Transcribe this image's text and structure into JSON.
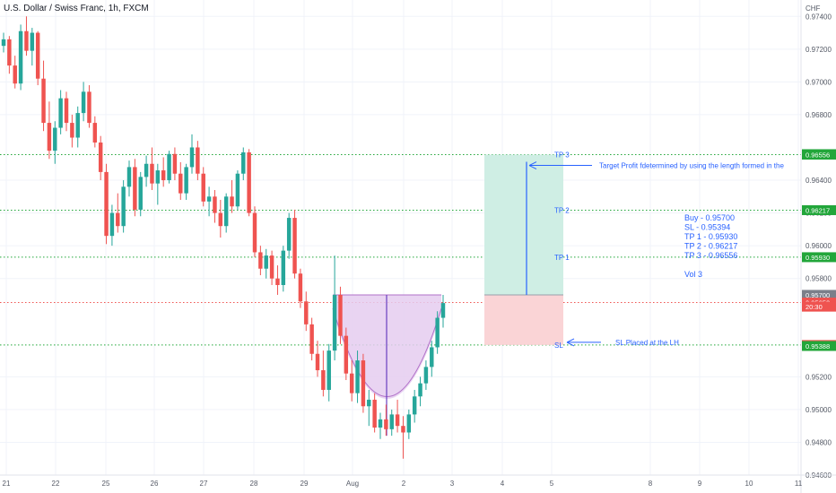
{
  "header": {
    "title": "U.S. Dollar / Swiss Franc, 1h, FXCM"
  },
  "chart_data": {
    "type": "candlestick",
    "symbol": "U.S. Dollar / Swiss Franc",
    "interval": "1h",
    "source": "FXCM",
    "y_unit": "CHF",
    "ylim": [
      0.946,
      0.975
    ],
    "y_ticks": [
      "0.97400",
      "0.97200",
      "0.97000",
      "0.96800",
      "0.96400",
      "0.96200",
      "0.96000",
      "0.95800",
      "0.95200",
      "0.95000",
      "0.94800",
      "0.94600"
    ],
    "x_ticks": [
      "21",
      "22",
      "25",
      "26",
      "27",
      "28",
      "29",
      "Aug",
      "2",
      "3",
      "4",
      "5",
      "8",
      "9",
      "10",
      "11",
      "12"
    ],
    "horizontal_levels": [
      {
        "label": "0.96556",
        "value": 0.96556,
        "color": "#22a63a",
        "style": "dotted"
      },
      {
        "label": "0.96217",
        "value": 0.96217,
        "color": "#22a63a",
        "style": "dotted"
      },
      {
        "label": "0.95930",
        "value": 0.9593,
        "color": "#22a63a",
        "style": "dotted"
      },
      {
        "label": "0.95394",
        "value": 0.95394,
        "color": "#22a63a",
        "style": "dotted"
      },
      {
        "label": "0.95653",
        "value": 0.95653,
        "color": "#ef5350",
        "style": "dotted"
      }
    ],
    "price_badges": [
      {
        "text": "0.96559",
        "value": 0.96559,
        "bg": "#22a63a"
      },
      {
        "text": "0.96556",
        "value": 0.96556,
        "bg": "#22a63a"
      },
      {
        "text": "0.96217",
        "value": 0.96217,
        "bg": "#22a63a"
      },
      {
        "text": "0.95930",
        "value": 0.9593,
        "bg": "#22a63a"
      },
      {
        "text": "0.95700",
        "value": 0.957,
        "bg": "#7b7f8a"
      },
      {
        "text": "0.95653",
        "value": 0.95653,
        "bg": "#ef5350"
      },
      {
        "text": "20:30",
        "value": 0.95628,
        "bg": "#ef5350"
      },
      {
        "text": "0.95394",
        "value": 0.95394,
        "bg": "#ef5350"
      },
      {
        "text": "0.95388",
        "value": 0.95388,
        "bg": "#22a63a"
      }
    ],
    "position": {
      "entry": 0.957,
      "stop": 0.95394,
      "target": 0.96556,
      "profit_zone_color": "#cfeee4",
      "loss_zone_color": "#fad4d6"
    },
    "level_labels": [
      {
        "text": "TP 3",
        "value": 0.96556
      },
      {
        "text": "TP 2",
        "value": 0.96217
      },
      {
        "text": "TP 1",
        "value": 0.9593
      },
      {
        "text": "SL",
        "value": 0.95394
      }
    ],
    "annotations": {
      "target_note": "Target Profit fdetermined by using the length formed in the",
      "sl_note": "SL Placed at the LH",
      "trade_plan": [
        "Buy - 0.95700",
        "SL - 0.95394",
        "TP 1 - 0.95930",
        "TP 2 - 0.96217",
        "TP 3 - 0.96556",
        "",
        "Vol 3"
      ]
    },
    "cup_pattern": {
      "rim": 0.957,
      "bottom": 0.9484,
      "color": "#b070c8"
    },
    "candles": [
      [
        0.9722,
        0.973,
        0.9718,
        0.9726
      ],
      [
        0.9726,
        0.9728,
        0.9705,
        0.971
      ],
      [
        0.971,
        0.9716,
        0.9696,
        0.9699
      ],
      [
        0.9699,
        0.9735,
        0.9695,
        0.9731
      ],
      [
        0.9731,
        0.974,
        0.9716,
        0.9719
      ],
      [
        0.9719,
        0.9733,
        0.971,
        0.973
      ],
      [
        0.973,
        0.9731,
        0.9698,
        0.9702
      ],
      [
        0.9702,
        0.9713,
        0.967,
        0.9675
      ],
      [
        0.9675,
        0.9688,
        0.9653,
        0.9658
      ],
      [
        0.9658,
        0.9676,
        0.965,
        0.9672
      ],
      [
        0.9672,
        0.9695,
        0.9668,
        0.969
      ],
      [
        0.969,
        0.9694,
        0.967,
        0.9675
      ],
      [
        0.9675,
        0.968,
        0.966,
        0.9666
      ],
      [
        0.9666,
        0.9685,
        0.966,
        0.9681
      ],
      [
        0.9681,
        0.97,
        0.9676,
        0.9694
      ],
      [
        0.9694,
        0.9698,
        0.9672,
        0.9675
      ],
      [
        0.9675,
        0.9679,
        0.966,
        0.9663
      ],
      [
        0.9663,
        0.9667,
        0.964,
        0.9645
      ],
      [
        0.9645,
        0.965,
        0.9601,
        0.9606
      ],
      [
        0.9606,
        0.9625,
        0.96,
        0.962
      ],
      [
        0.962,
        0.9632,
        0.9608,
        0.9612
      ],
      [
        0.9612,
        0.964,
        0.9608,
        0.9636
      ],
      [
        0.9636,
        0.9652,
        0.963,
        0.9648
      ],
      [
        0.9648,
        0.9653,
        0.9618,
        0.9622
      ],
      [
        0.9622,
        0.9645,
        0.9618,
        0.9642
      ],
      [
        0.9642,
        0.9655,
        0.9636,
        0.965
      ],
      [
        0.965,
        0.966,
        0.9634,
        0.9638
      ],
      [
        0.9638,
        0.965,
        0.9625,
        0.9646
      ],
      [
        0.9646,
        0.9654,
        0.9636,
        0.964
      ],
      [
        0.964,
        0.9658,
        0.9638,
        0.9656
      ],
      [
        0.9656,
        0.966,
        0.964,
        0.9644
      ],
      [
        0.9644,
        0.9651,
        0.9628,
        0.9632
      ],
      [
        0.9632,
        0.965,
        0.9628,
        0.9648
      ],
      [
        0.9648,
        0.9668,
        0.9644,
        0.966
      ],
      [
        0.966,
        0.9664,
        0.964,
        0.9644
      ],
      [
        0.9644,
        0.9648,
        0.9624,
        0.9627
      ],
      [
        0.9627,
        0.9636,
        0.9618,
        0.963
      ],
      [
        0.963,
        0.9634,
        0.9614,
        0.962
      ],
      [
        0.962,
        0.9628,
        0.9605,
        0.9612
      ],
      [
        0.9612,
        0.9632,
        0.9608,
        0.963
      ],
      [
        0.963,
        0.964,
        0.962,
        0.9624
      ],
      [
        0.9624,
        0.9646,
        0.9622,
        0.9644
      ],
      [
        0.9644,
        0.966,
        0.964,
        0.9657
      ],
      [
        0.9657,
        0.9659,
        0.9618,
        0.962
      ],
      [
        0.962,
        0.9624,
        0.9593,
        0.9596
      ],
      [
        0.9596,
        0.96,
        0.9582,
        0.9586
      ],
      [
        0.9586,
        0.9598,
        0.958,
        0.9594
      ],
      [
        0.9594,
        0.9597,
        0.9576,
        0.958
      ],
      [
        0.958,
        0.9588,
        0.957,
        0.9576
      ],
      [
        0.9576,
        0.96,
        0.9572,
        0.9597
      ],
      [
        0.9597,
        0.962,
        0.9592,
        0.9617
      ],
      [
        0.9617,
        0.9622,
        0.958,
        0.9583
      ],
      [
        0.9583,
        0.9586,
        0.9562,
        0.9566
      ],
      [
        0.9566,
        0.9572,
        0.9548,
        0.9552
      ],
      [
        0.9552,
        0.9556,
        0.953,
        0.9534
      ],
      [
        0.9534,
        0.9542,
        0.952,
        0.9524
      ],
      [
        0.9524,
        0.9536,
        0.9508,
        0.9512
      ],
      [
        0.9512,
        0.954,
        0.9505,
        0.9536
      ],
      [
        0.9536,
        0.9594,
        0.953,
        0.957
      ],
      [
        0.957,
        0.9575,
        0.954,
        0.9545
      ],
      [
        0.9545,
        0.955,
        0.9518,
        0.9522
      ],
      [
        0.9522,
        0.953,
        0.9505,
        0.951
      ],
      [
        0.951,
        0.9536,
        0.9504,
        0.953
      ],
      [
        0.953,
        0.9534,
        0.9498,
        0.9502
      ],
      [
        0.9502,
        0.9512,
        0.949,
        0.9506
      ],
      [
        0.9506,
        0.951,
        0.9486,
        0.9489
      ],
      [
        0.9489,
        0.9498,
        0.9482,
        0.9494
      ],
      [
        0.9494,
        0.9503,
        0.9484,
        0.9488
      ],
      [
        0.9488,
        0.95,
        0.9484,
        0.9497
      ],
      [
        0.9497,
        0.9506,
        0.9486,
        0.949
      ],
      [
        0.949,
        0.9496,
        0.947,
        0.9486
      ],
      [
        0.9486,
        0.95,
        0.9482,
        0.9497
      ],
      [
        0.9497,
        0.9512,
        0.9492,
        0.9508
      ],
      [
        0.9508,
        0.952,
        0.9502,
        0.9516
      ],
      [
        0.9516,
        0.953,
        0.9512,
        0.9526
      ],
      [
        0.9526,
        0.9542,
        0.952,
        0.9538
      ],
      [
        0.9538,
        0.956,
        0.9534,
        0.9556
      ],
      [
        0.9556,
        0.957,
        0.955,
        0.9565
      ]
    ],
    "grid": true,
    "legend": "none"
  }
}
